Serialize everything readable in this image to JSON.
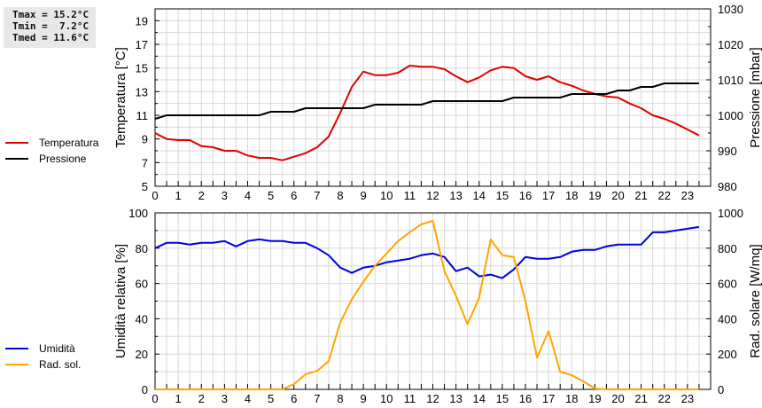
{
  "stats_box": {
    "tmax": "Tmax = 15.2°C",
    "tmin": "Tmin =  7.2°C",
    "tmed": "Tmed = 11.6°C"
  },
  "legend_top": [
    {
      "label": "Temperatura",
      "color": "#e00000"
    },
    {
      "label": "Pressione",
      "color": "#000000"
    }
  ],
  "legend_bottom": [
    {
      "label": "Umidità",
      "color": "#0000e0"
    },
    {
      "label": "Rad. sol.",
      "color": "#ffa500"
    }
  ],
  "chart_data": [
    {
      "type": "line",
      "title": "",
      "xlabel": "",
      "ylabel": "Temperatura [°C]",
      "ylabel_right": "Pressione [mbar]",
      "xlim": [
        0,
        24
      ],
      "ylim": [
        5,
        20
      ],
      "ylim_right": [
        980,
        1030
      ],
      "x_ticks": [
        0,
        1,
        2,
        3,
        4,
        5,
        6,
        7,
        8,
        9,
        10,
        11,
        12,
        13,
        14,
        15,
        16,
        17,
        18,
        19,
        20,
        21,
        22,
        23
      ],
      "y_ticks": [
        5,
        7,
        9,
        11,
        13,
        15,
        17,
        19
      ],
      "y_ticks_right": [
        980,
        990,
        1000,
        1010,
        1020,
        1030
      ],
      "grid": true,
      "legend_position": "left-outside",
      "x": [
        0,
        0.5,
        1,
        1.5,
        2,
        2.5,
        3,
        3.5,
        4,
        4.5,
        5,
        5.5,
        6,
        6.5,
        7,
        7.5,
        8,
        8.5,
        9,
        9.5,
        10,
        10.5,
        11,
        11.5,
        12,
        12.5,
        13,
        13.5,
        14,
        14.5,
        15,
        15.5,
        16,
        16.5,
        17,
        17.5,
        18,
        18.5,
        19,
        19.5,
        20,
        20.5,
        21,
        21.5,
        22,
        22.5,
        23,
        23.5
      ],
      "series": [
        {
          "name": "Temperatura",
          "axis": "left",
          "color": "#e00000",
          "values": [
            9.5,
            9.0,
            8.9,
            8.9,
            8.4,
            8.3,
            8.0,
            8.0,
            7.6,
            7.4,
            7.4,
            7.2,
            7.5,
            7.8,
            8.3,
            9.2,
            11.2,
            13.4,
            14.7,
            14.4,
            14.4,
            14.6,
            15.2,
            15.1,
            15.1,
            14.9,
            14.3,
            13.8,
            14.2,
            14.8,
            15.1,
            15.0,
            14.3,
            14.0,
            14.3,
            13.8,
            13.5,
            13.1,
            12.8,
            12.6,
            12.5,
            12.0,
            11.6,
            11.0,
            10.7,
            10.3,
            9.8,
            9.3
          ]
        },
        {
          "name": "Pressione",
          "axis": "right",
          "color": "#000000",
          "values": [
            999,
            1000,
            1000,
            1000,
            1000,
            1000,
            1000,
            1000,
            1000,
            1000,
            1001,
            1001,
            1001,
            1002,
            1002,
            1002,
            1002,
            1002,
            1002,
            1003,
            1003,
            1003,
            1003,
            1003,
            1004,
            1004,
            1004,
            1004,
            1004,
            1004,
            1004,
            1005,
            1005,
            1005,
            1005,
            1005,
            1006,
            1006,
            1006,
            1006,
            1007,
            1007,
            1008,
            1008,
            1009,
            1009,
            1009,
            1009
          ]
        }
      ]
    },
    {
      "type": "line",
      "title": "",
      "xlabel": "",
      "ylabel": "Umidità relativa [%]",
      "ylabel_right": "Rad. solare [W/mq]",
      "xlim": [
        0,
        24
      ],
      "ylim": [
        0,
        100
      ],
      "ylim_right": [
        0,
        1000
      ],
      "x_ticks": [
        0,
        1,
        2,
        3,
        4,
        5,
        6,
        7,
        8,
        9,
        10,
        11,
        12,
        13,
        14,
        15,
        16,
        17,
        18,
        19,
        20,
        21,
        22,
        23
      ],
      "y_ticks": [
        0,
        20,
        40,
        60,
        80,
        100
      ],
      "y_ticks_right": [
        0,
        200,
        400,
        600,
        800,
        1000
      ],
      "grid": true,
      "legend_position": "left-outside",
      "x": [
        0,
        0.5,
        1,
        1.5,
        2,
        2.5,
        3,
        3.5,
        4,
        4.5,
        5,
        5.5,
        6,
        6.5,
        7,
        7.5,
        8,
        8.5,
        9,
        9.5,
        10,
        10.5,
        11,
        11.5,
        12,
        12.5,
        13,
        13.5,
        14,
        14.5,
        15,
        15.5,
        16,
        16.5,
        17,
        17.5,
        18,
        18.5,
        19,
        19.5,
        20,
        20.5,
        21,
        21.5,
        22,
        22.5,
        23,
        23.5
      ],
      "series": [
        {
          "name": "Umidità",
          "axis": "left",
          "color": "#0000e0",
          "values": [
            80,
            83,
            83,
            82,
            83,
            83,
            84,
            81,
            84,
            85,
            84,
            84,
            83,
            83,
            80,
            76,
            69,
            66,
            69,
            70,
            72,
            73,
            74,
            76,
            77,
            75,
            67,
            69,
            64,
            65,
            63,
            68,
            75,
            74,
            74,
            75,
            78,
            79,
            79,
            81,
            82,
            82,
            82,
            89,
            89,
            90,
            91,
            92
          ]
        },
        {
          "name": "Rad. sol.",
          "axis": "right",
          "color": "#ffa500",
          "values": [
            0,
            0,
            0,
            0,
            0,
            0,
            0,
            0,
            0,
            0,
            0,
            0,
            30,
            85,
            105,
            160,
            380,
            510,
            610,
            700,
            770,
            840,
            890,
            935,
            955,
            670,
            530,
            370,
            520,
            850,
            760,
            750,
            500,
            180,
            330,
            100,
            80,
            45,
            5,
            0,
            0,
            0,
            0,
            0,
            0,
            0,
            0,
            0
          ]
        }
      ]
    }
  ]
}
